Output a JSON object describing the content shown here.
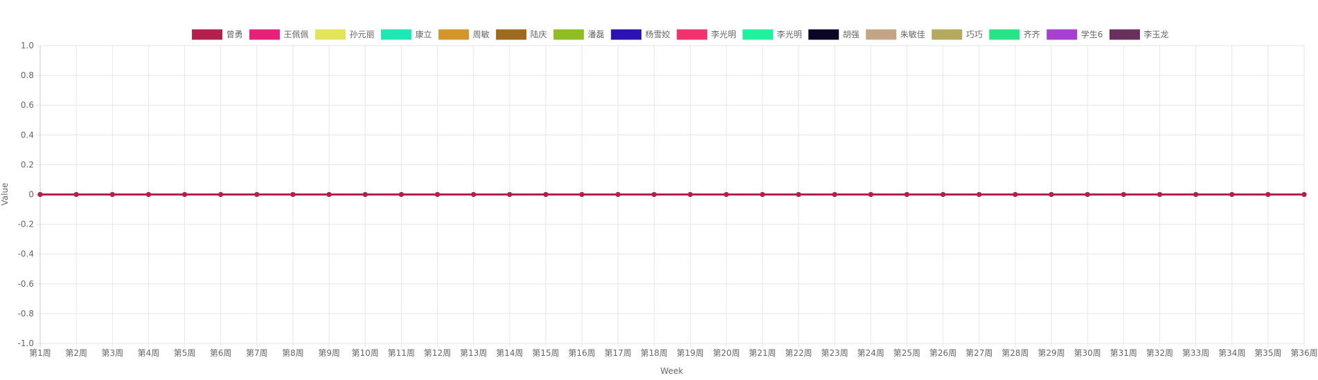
{
  "chart_data": {
    "type": "line",
    "xlabel": "Week",
    "ylabel": "Value",
    "ylim": [
      -1.0,
      1.0
    ],
    "yticks": [
      "1.0",
      "0.8",
      "0.6",
      "0.4",
      "0.2",
      "0",
      "-0.2",
      "-0.4",
      "-0.6",
      "-0.8",
      "-1.0"
    ],
    "ytick_values": [
      1.0,
      0.8,
      0.6,
      0.4,
      0.2,
      0,
      -0.2,
      -0.4,
      -0.6,
      -0.8,
      -1.0
    ],
    "grid": true,
    "legend_position": "top",
    "categories": [
      "第1周",
      "第2周",
      "第3周",
      "第4周",
      "第5周",
      "第6周",
      "第7周",
      "第8周",
      "第9周",
      "第10周",
      "第11周",
      "第12周",
      "第13周",
      "第14周",
      "第15周",
      "第16周",
      "第17周",
      "第18周",
      "第19周",
      "第20周",
      "第21周",
      "第22周",
      "第23周",
      "第24周",
      "第25周",
      "第26周",
      "第27周",
      "第28周",
      "第29周",
      "第30周",
      "第31周",
      "第32周",
      "第33周",
      "第34周",
      "第35周",
      "第36周"
    ],
    "series": [
      {
        "name": "曾勇",
        "color": "#b3204e",
        "values": [
          0,
          0,
          0,
          0,
          0,
          0,
          0,
          0,
          0,
          0,
          0,
          0,
          0,
          0,
          0,
          0,
          0,
          0,
          0,
          0,
          0,
          0,
          0,
          0,
          0,
          0,
          0,
          0,
          0,
          0,
          0,
          0,
          0,
          0,
          0,
          0
        ]
      },
      {
        "name": "王佩佩",
        "color": "#e8207a",
        "values": [
          0,
          0,
          0,
          0,
          0,
          0,
          0,
          0,
          0,
          0,
          0,
          0,
          0,
          0,
          0,
          0,
          0,
          0,
          0,
          0,
          0,
          0,
          0,
          0,
          0,
          0,
          0,
          0,
          0,
          0,
          0,
          0,
          0,
          0,
          0,
          0
        ]
      },
      {
        "name": "孙元丽",
        "color": "#e3e35c",
        "values": [
          0,
          0,
          0,
          0,
          0,
          0,
          0,
          0,
          0,
          0,
          0,
          0,
          0,
          0,
          0,
          0,
          0,
          0,
          0,
          0,
          0,
          0,
          0,
          0,
          0,
          0,
          0,
          0,
          0,
          0,
          0,
          0,
          0,
          0,
          0,
          0
        ]
      },
      {
        "name": "康立",
        "color": "#1de8b5",
        "values": [
          0,
          0,
          0,
          0,
          0,
          0,
          0,
          0,
          0,
          0,
          0,
          0,
          0,
          0,
          0,
          0,
          0,
          0,
          0,
          0,
          0,
          0,
          0,
          0,
          0,
          0,
          0,
          0,
          0,
          0,
          0,
          0,
          0,
          0,
          0,
          0
        ]
      },
      {
        "name": "周敏",
        "color": "#d4962b",
        "values": [
          0,
          0,
          0,
          0,
          0,
          0,
          0,
          0,
          0,
          0,
          0,
          0,
          0,
          0,
          0,
          0,
          0,
          0,
          0,
          0,
          0,
          0,
          0,
          0,
          0,
          0,
          0,
          0,
          0,
          0,
          0,
          0,
          0,
          0,
          0,
          0
        ]
      },
      {
        "name": "陆庆",
        "color": "#a06a1e",
        "values": [
          0,
          0,
          0,
          0,
          0,
          0,
          0,
          0,
          0,
          0,
          0,
          0,
          0,
          0,
          0,
          0,
          0,
          0,
          0,
          0,
          0,
          0,
          0,
          0,
          0,
          0,
          0,
          0,
          0,
          0,
          0,
          0,
          0,
          0,
          0,
          0
        ]
      },
      {
        "name": "潘磊",
        "color": "#8fbe22",
        "values": [
          0,
          0,
          0,
          0,
          0,
          0,
          0,
          0,
          0,
          0,
          0,
          0,
          0,
          0,
          0,
          0,
          0,
          0,
          0,
          0,
          0,
          0,
          0,
          0,
          0,
          0,
          0,
          0,
          0,
          0,
          0,
          0,
          0,
          0,
          0,
          0
        ]
      },
      {
        "name": "杨雪姣",
        "color": "#2a12b3",
        "values": [
          0,
          0,
          0,
          0,
          0,
          0,
          0,
          0,
          0,
          0,
          0,
          0,
          0,
          0,
          0,
          0,
          0,
          0,
          0,
          0,
          0,
          0,
          0,
          0,
          0,
          0,
          0,
          0,
          0,
          0,
          0,
          0,
          0,
          0,
          0,
          0
        ]
      },
      {
        "name": "李光明",
        "color": "#f2326e",
        "values": [
          0,
          0,
          0,
          0,
          0,
          0,
          0,
          0,
          0,
          0,
          0,
          0,
          0,
          0,
          0,
          0,
          0,
          0,
          0,
          0,
          0,
          0,
          0,
          0,
          0,
          0,
          0,
          0,
          0,
          0,
          0,
          0,
          0,
          0,
          0,
          0
        ]
      },
      {
        "name": "李光明",
        "color": "#1ef29d",
        "values": [
          0,
          0,
          0,
          0,
          0,
          0,
          0,
          0,
          0,
          0,
          0,
          0,
          0,
          0,
          0,
          0,
          0,
          0,
          0,
          0,
          0,
          0,
          0,
          0,
          0,
          0,
          0,
          0,
          0,
          0,
          0,
          0,
          0,
          0,
          0,
          0
        ]
      },
      {
        "name": "胡强",
        "color": "#0b0626",
        "values": [
          0,
          0,
          0,
          0,
          0,
          0,
          0,
          0,
          0,
          0,
          0,
          0,
          0,
          0,
          0,
          0,
          0,
          0,
          0,
          0,
          0,
          0,
          0,
          0,
          0,
          0,
          0,
          0,
          0,
          0,
          0,
          0,
          0,
          0,
          0,
          0
        ]
      },
      {
        "name": "朱敏佳",
        "color": "#c3a585",
        "values": [
          0,
          0,
          0,
          0,
          0,
          0,
          0,
          0,
          0,
          0,
          0,
          0,
          0,
          0,
          0,
          0,
          0,
          0,
          0,
          0,
          0,
          0,
          0,
          0,
          0,
          0,
          0,
          0,
          0,
          0,
          0,
          0,
          0,
          0,
          0,
          0
        ]
      },
      {
        "name": "巧巧",
        "color": "#b5a95c",
        "values": [
          0,
          0,
          0,
          0,
          0,
          0,
          0,
          0,
          0,
          0,
          0,
          0,
          0,
          0,
          0,
          0,
          0,
          0,
          0,
          0,
          0,
          0,
          0,
          0,
          0,
          0,
          0,
          0,
          0,
          0,
          0,
          0,
          0,
          0,
          0,
          0
        ]
      },
      {
        "name": "齐齐",
        "color": "#26e586",
        "values": [
          0,
          0,
          0,
          0,
          0,
          0,
          0,
          0,
          0,
          0,
          0,
          0,
          0,
          0,
          0,
          0,
          0,
          0,
          0,
          0,
          0,
          0,
          0,
          0,
          0,
          0,
          0,
          0,
          0,
          0,
          0,
          0,
          0,
          0,
          0,
          0
        ]
      },
      {
        "name": "学生6",
        "color": "#a83fd1",
        "values": [
          0,
          0,
          0,
          0,
          0,
          0,
          0,
          0,
          0,
          0,
          0,
          0,
          0,
          0,
          0,
          0,
          0,
          0,
          0,
          0,
          0,
          0,
          0,
          0,
          0,
          0,
          0,
          0,
          0,
          0,
          0,
          0,
          0,
          0,
          0,
          0
        ]
      },
      {
        "name": "李玉龙",
        "color": "#6a2f5c",
        "values": [
          0,
          0,
          0,
          0,
          0,
          0,
          0,
          0,
          0,
          0,
          0,
          0,
          0,
          0,
          0,
          0,
          0,
          0,
          0,
          0,
          0,
          0,
          0,
          0,
          0,
          0,
          0,
          0,
          0,
          0,
          0,
          0,
          0,
          0,
          0,
          0
        ]
      }
    ]
  }
}
